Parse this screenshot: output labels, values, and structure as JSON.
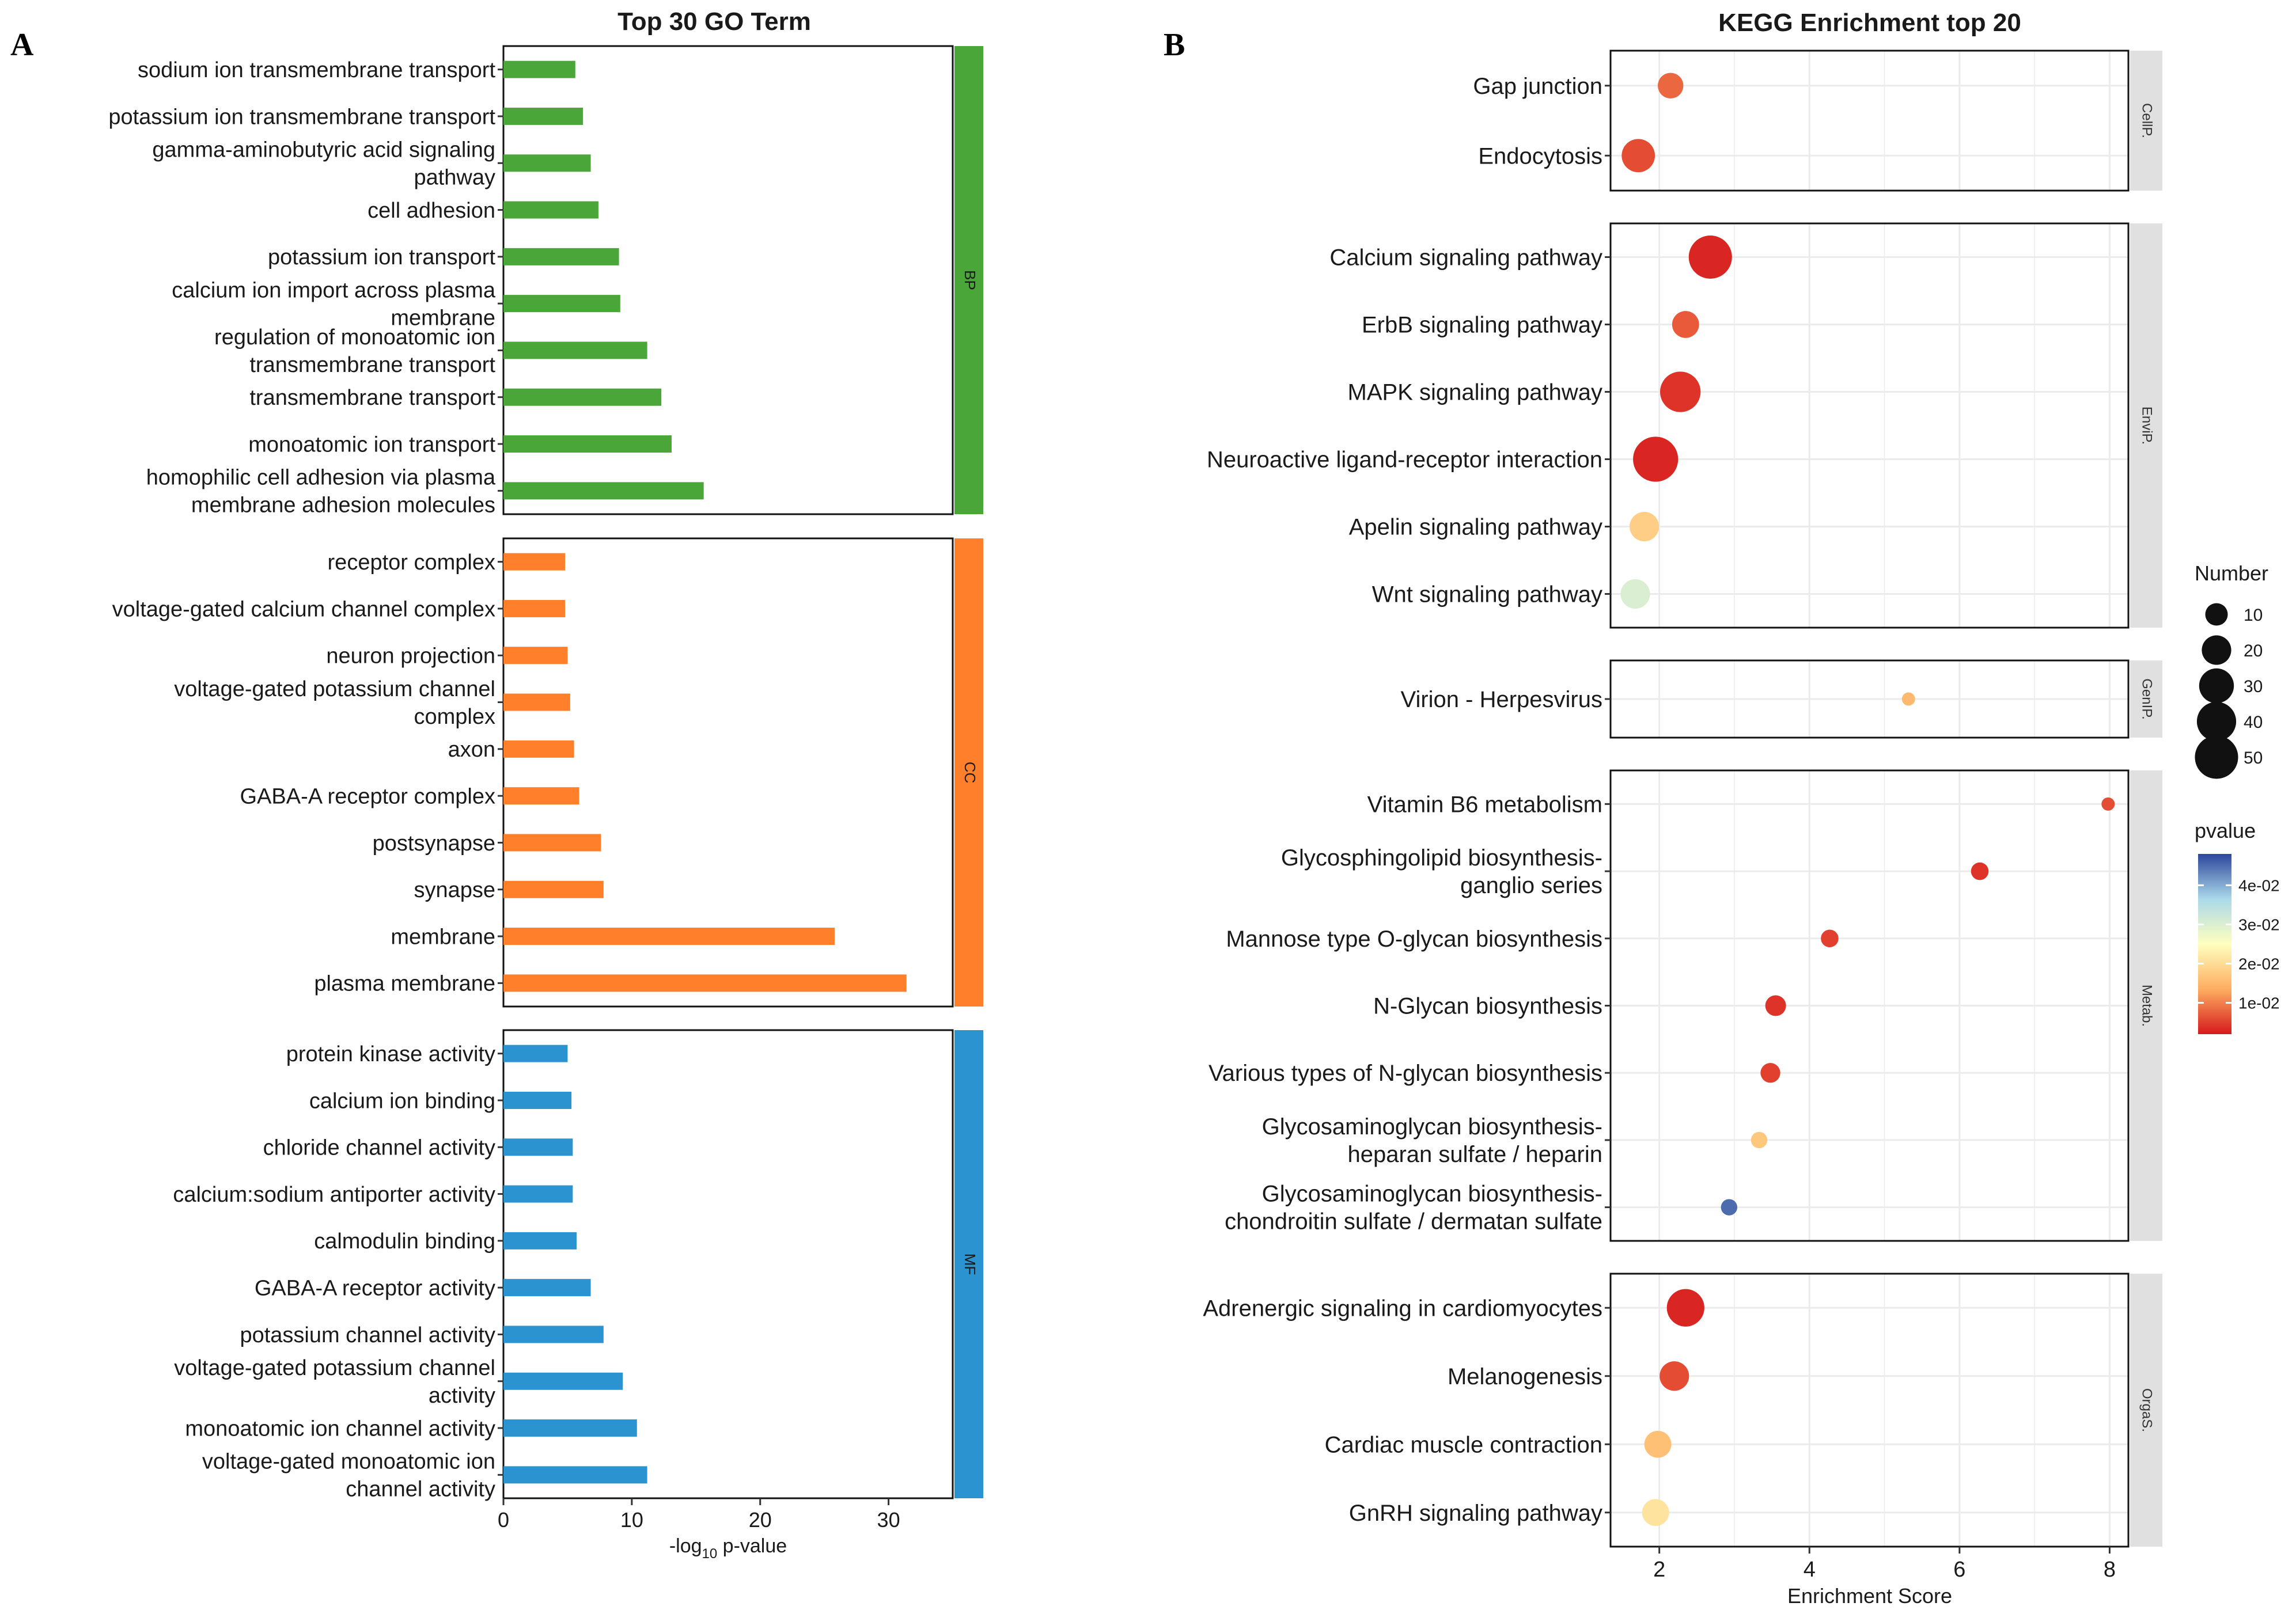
{
  "panels": {
    "a_letter": "A",
    "b_letter": "B"
  },
  "colors": {
    "BP": "#4BA63A",
    "CC": "#FF7F2A",
    "MF": "#2B93CF",
    "facet_strip": "#E0E0E0",
    "grid": "#EBEBEB"
  },
  "chart_data": [
    {
      "type": "bar",
      "orientation": "horizontal",
      "title": "Top 30 GO Term",
      "xlabel": "-log10 p-value",
      "xlabel_parts": {
        "prefix": "-log",
        "sub": "10",
        "suffix": " p-value"
      },
      "xlim": [
        0,
        35
      ],
      "xticks": [
        0,
        10,
        20,
        30
      ],
      "facets": [
        {
          "name": "BP",
          "categories": [
            [
              "sodium ion transmembrane transport"
            ],
            [
              "potassium ion transmembrane transport"
            ],
            [
              "gamma-aminobutyric acid signaling",
              "pathway"
            ],
            [
              "cell adhesion"
            ],
            [
              "potassium ion transport"
            ],
            [
              "calcium ion import across plasma",
              "membrane"
            ],
            [
              "regulation of monoatomic ion",
              "transmembrane transport"
            ],
            [
              "transmembrane transport"
            ],
            [
              "monoatomic ion transport"
            ],
            [
              "homophilic cell adhesion via plasma",
              "membrane adhesion molecules"
            ]
          ],
          "values": [
            5.6,
            6.2,
            6.8,
            7.4,
            9.0,
            9.1,
            11.2,
            12.3,
            13.1,
            15.6
          ]
        },
        {
          "name": "CC",
          "categories": [
            [
              "receptor complex"
            ],
            [
              "voltage-gated calcium channel complex"
            ],
            [
              "neuron projection"
            ],
            [
              "voltage-gated potassium channel",
              "complex"
            ],
            [
              "axon"
            ],
            [
              "GABA-A receptor complex"
            ],
            [
              "postsynapse"
            ],
            [
              "synapse"
            ],
            [
              "membrane"
            ],
            [
              "plasma membrane"
            ]
          ],
          "values": [
            4.8,
            4.8,
            5.0,
            5.2,
            5.5,
            5.9,
            7.6,
            7.8,
            25.8,
            31.4
          ]
        },
        {
          "name": "MF",
          "categories": [
            [
              "protein kinase activity"
            ],
            [
              "calcium ion binding"
            ],
            [
              "chloride channel activity"
            ],
            [
              "calcium:sodium antiporter activity"
            ],
            [
              "calmodulin binding"
            ],
            [
              "GABA-A receptor activity"
            ],
            [
              "potassium channel activity"
            ],
            [
              "voltage-gated potassium channel",
              "activity"
            ],
            [
              "monoatomic ion channel activity"
            ],
            [
              "voltage-gated monoatomic ion",
              "channel activity"
            ]
          ],
          "values": [
            5.0,
            5.3,
            5.4,
            5.4,
            5.7,
            6.8,
            7.8,
            9.3,
            10.4,
            11.2
          ]
        }
      ]
    },
    {
      "type": "scatter",
      "title": "KEGG Enrichment top 20",
      "xlabel": "Enrichment Score",
      "xlim": [
        1.35,
        8.25
      ],
      "xticks": [
        2,
        4,
        6,
        8
      ],
      "size_legend": {
        "title": "Number",
        "values": [
          10,
          20,
          30,
          40,
          50
        ]
      },
      "color_legend": {
        "title": "pvalue",
        "range": [
          0.002,
          0.048
        ],
        "ticks": [
          0.01,
          0.02,
          0.03,
          0.04
        ],
        "tick_labels": [
          "1e-02",
          "2e-02",
          "3e-02",
          "4e-02"
        ]
      },
      "facets": [
        {
          "name": "CellP.",
          "points": [
            {
              "label": [
                "Gap junction"
              ],
              "x": 2.15,
              "number": 14,
              "pvalue": 0.008
            },
            {
              "label": [
                "Endocytosis"
              ],
              "x": 1.72,
              "number": 27,
              "pvalue": 0.006
            }
          ]
        },
        {
          "name": "EnviP.",
          "points": [
            {
              "label": [
                "Calcium signaling pathway"
              ],
              "x": 2.68,
              "number": 50,
              "pvalue": 0.003
            },
            {
              "label": [
                "ErbB signaling pathway"
              ],
              "x": 2.35,
              "number": 16,
              "pvalue": 0.007
            },
            {
              "label": [
                "MAPK signaling pathway"
              ],
              "x": 2.28,
              "number": 43,
              "pvalue": 0.004
            },
            {
              "label": [
                "Neuroactive ligand-receptor interaction"
              ],
              "x": 1.95,
              "number": 55,
              "pvalue": 0.003
            },
            {
              "label": [
                "Apelin signaling pathway"
              ],
              "x": 1.8,
              "number": 20,
              "pvalue": 0.018
            },
            {
              "label": [
                "Wnt signaling pathway"
              ],
              "x": 1.68,
              "number": 20,
              "pvalue": 0.03
            }
          ]
        },
        {
          "name": "GenIP.",
          "points": [
            {
              "label": [
                "Virion - Herpesvirus"
              ],
              "x": 5.32,
              "number": 2,
              "pvalue": 0.015
            }
          ]
        },
        {
          "name": "Metab.",
          "points": [
            {
              "label": [
                "Vitamin B6 metabolism"
              ],
              "x": 7.98,
              "number": 2,
              "pvalue": 0.006
            },
            {
              "label": [
                "Glycosphingolipid biosynthesis-",
                "ganglio series"
              ],
              "x": 6.27,
              "number": 5,
              "pvalue": 0.004
            },
            {
              "label": [
                "Mannose type O-glycan biosynthesis"
              ],
              "x": 4.27,
              "number": 5,
              "pvalue": 0.005
            },
            {
              "label": [
                "N-Glycan biosynthesis"
              ],
              "x": 3.55,
              "number": 8,
              "pvalue": 0.004
            },
            {
              "label": [
                "Various types of N-glycan biosynthesis"
              ],
              "x": 3.48,
              "number": 7,
              "pvalue": 0.005
            },
            {
              "label": [
                "Glycosaminoglycan biosynthesis-",
                "heparan sulfate / heparin"
              ],
              "x": 3.33,
              "number": 4,
              "pvalue": 0.017
            },
            {
              "label": [
                "Glycosaminoglycan biosynthesis-",
                "chondroitin sulfate / dermatan sulfate"
              ],
              "x": 2.93,
              "number": 4,
              "pvalue": 0.045
            }
          ]
        },
        {
          "name": "OrgaS.",
          "points": [
            {
              "label": [
                "Adrenergic signaling in cardiomyocytes"
              ],
              "x": 2.35,
              "number": 36,
              "pvalue": 0.003
            },
            {
              "label": [
                "Melanogenesis"
              ],
              "x": 2.2,
              "number": 20,
              "pvalue": 0.006
            },
            {
              "label": [
                "Cardiac muscle contraction"
              ],
              "x": 1.98,
              "number": 16,
              "pvalue": 0.016
            },
            {
              "label": [
                "GnRH signaling pathway"
              ],
              "x": 1.95,
              "number": 16,
              "pvalue": 0.021
            }
          ]
        }
      ]
    }
  ]
}
